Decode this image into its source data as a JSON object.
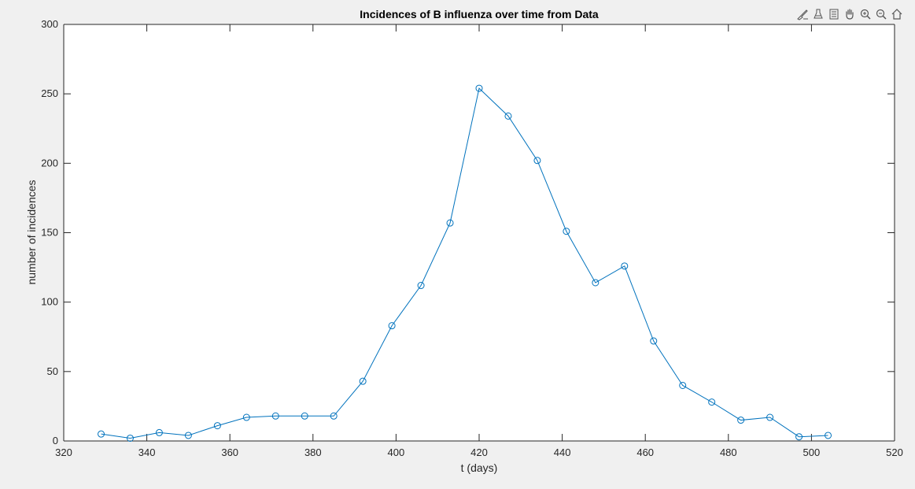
{
  "toolbar": {
    "icons": [
      "brush-icon",
      "data-tips-icon",
      "legend-icon",
      "pan-icon",
      "zoom-in-icon",
      "zoom-out-icon",
      "home-icon"
    ]
  },
  "colors": {
    "figure_background": "#f0f0f0",
    "axes_background": "#ffffff",
    "series": "#0072bd",
    "axis_text": "#262626"
  },
  "chart_data": {
    "type": "line",
    "title": "Incidences of B influenza over time from Data",
    "xlabel": "t (days)",
    "ylabel": "number of incidences",
    "xlim": [
      320,
      520
    ],
    "ylim": [
      0,
      300
    ],
    "xticks": [
      "320",
      "340",
      "360",
      "380",
      "400",
      "420",
      "440",
      "460",
      "480",
      "500",
      "520"
    ],
    "yticks": [
      "0",
      "50",
      "100",
      "150",
      "200",
      "250",
      "300"
    ],
    "grid": false,
    "marker": "circle",
    "series": [
      {
        "x": [
          329,
          336,
          343,
          350,
          357,
          364,
          371,
          378,
          385,
          392,
          399,
          406,
          413,
          420,
          427,
          434,
          441,
          448,
          455,
          462,
          469,
          476,
          483,
          490,
          497,
          504
        ],
        "values": [
          5,
          2,
          6,
          4,
          11,
          17,
          18,
          18,
          18,
          43,
          83,
          112,
          157,
          254,
          234,
          202,
          151,
          114,
          126,
          72,
          40,
          28,
          15,
          17,
          3,
          4
        ]
      }
    ]
  }
}
